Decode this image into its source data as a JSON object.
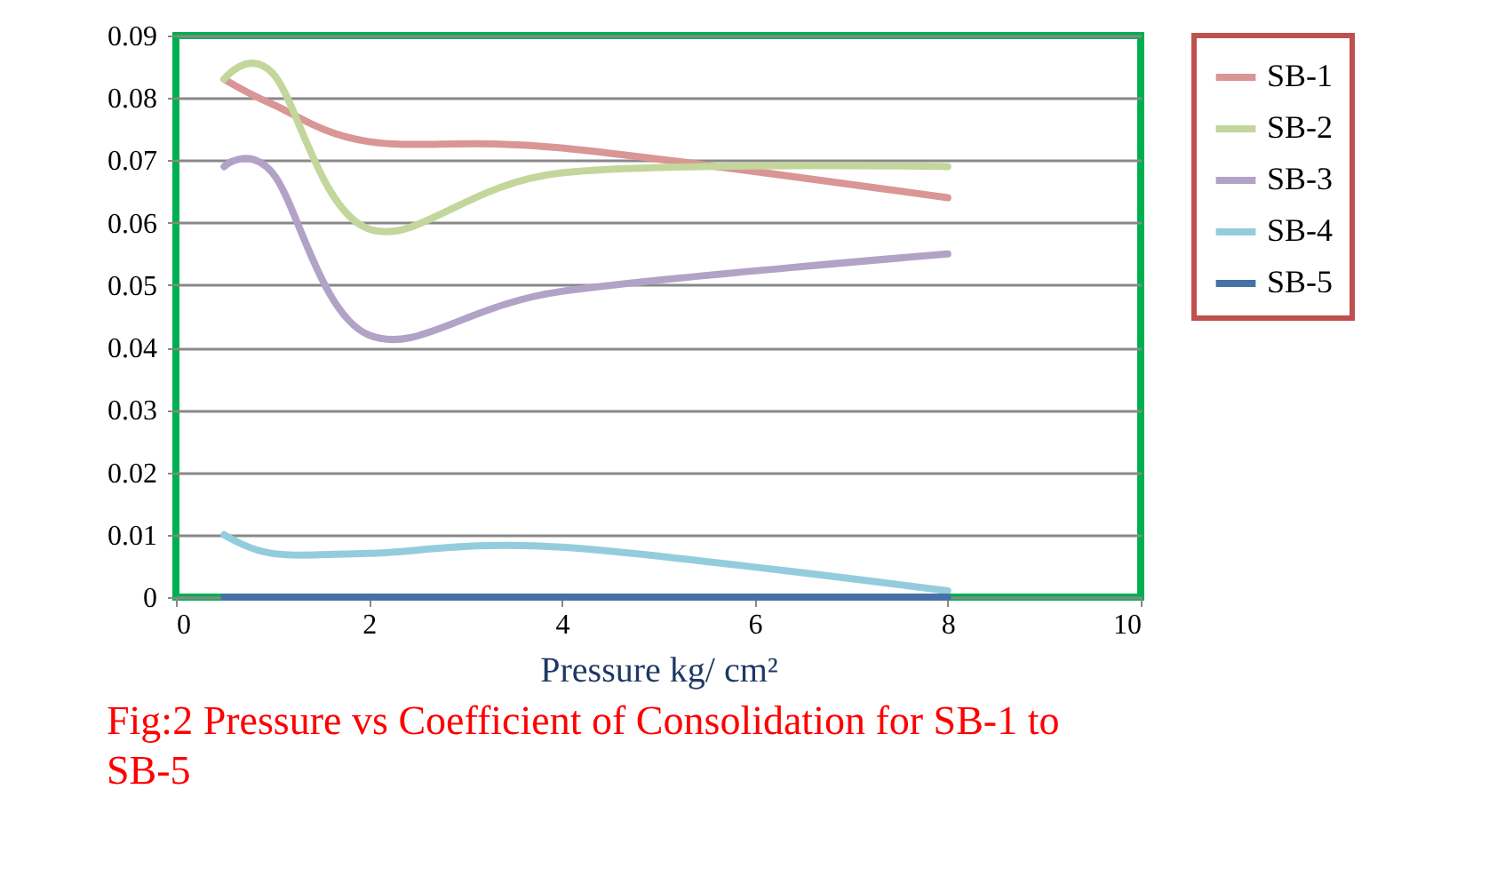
{
  "chart_data": {
    "type": "line",
    "title": "Fig:2 Pressure vs  Coefficient of Consolidation  for SB-1 to SB-5",
    "xlabel": "Pressure kg/ cm²",
    "x": [
      0.5,
      1,
      2,
      4,
      8
    ],
    "series": [
      {
        "name": "SB-1",
        "color": "#d99694",
        "values": [
          0.083,
          0.079,
          0.073,
          0.072,
          0.064
        ]
      },
      {
        "name": "SB-2",
        "color": "#c3d69b",
        "values": [
          0.083,
          0.084,
          0.059,
          0.068,
          0.069
        ]
      },
      {
        "name": "SB-3",
        "color": "#b3a2c7",
        "values": [
          0.069,
          0.068,
          0.042,
          0.049,
          0.055
        ]
      },
      {
        "name": "SB-4",
        "color": "#93cddd",
        "values": [
          0.01,
          0.007,
          0.007,
          0.008,
          0.001
        ]
      },
      {
        "name": "SB-5",
        "color": "#4572a7",
        "values": [
          0,
          0,
          0,
          0,
          0
        ]
      }
    ],
    "xlim": [
      0,
      10
    ],
    "xticks": [
      0,
      2,
      4,
      6,
      8,
      10
    ],
    "ylim": [
      0,
      0.09
    ],
    "yticks": [
      {
        "value": 0,
        "label": "0"
      },
      {
        "value": 0.01,
        "label": "0.01"
      },
      {
        "value": 0.02,
        "label": "0.02"
      },
      {
        "value": 0.03,
        "label": "0.03"
      },
      {
        "value": 0.04,
        "label": "0.04"
      },
      {
        "value": 0.05,
        "label": "0.05"
      },
      {
        "value": 0.06,
        "label": "0.06"
      },
      {
        "value": 0.07,
        "label": "0.07"
      },
      {
        "value": 0.08,
        "label": "0.08"
      },
      {
        "value": 0.09,
        "label": "0.09"
      }
    ],
    "grid": "y",
    "legend": "right",
    "marker": "none",
    "line_style": "solid"
  }
}
